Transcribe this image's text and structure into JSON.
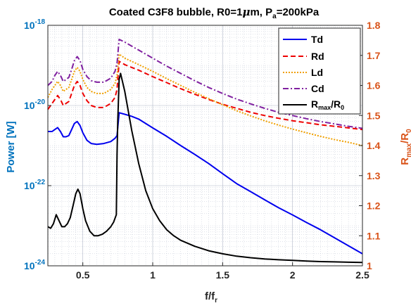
{
  "chart_data": {
    "type": "line",
    "title": "Coated C3F8 bubble, R0=1",
    "title_mu": "μ",
    "title_rest": "m, P",
    "title_sub": "a",
    "title_end": "=200kPa",
    "xlabel_main": "f/f",
    "xlabel_sub": "r",
    "ylabel_left": "Power [W]",
    "ylabel_right_main": "R",
    "ylabel_right_sub1": "max",
    "ylabel_right_mid": "/R",
    "ylabel_right_sub2": "0",
    "xlim": [
      0.25,
      2.5
    ],
    "ylim_left": [
      1e-24,
      1e-18
    ],
    "ylim_right": [
      1.0,
      1.8
    ],
    "left_scale": "log",
    "grid": true,
    "legend_position": "top-right",
    "x_ticks": [
      {
        "v": 0.5,
        "label": "0.5"
      },
      {
        "v": 1,
        "label": "1"
      },
      {
        "v": 1.5,
        "label": "1.5"
      },
      {
        "v": 2,
        "label": "2"
      },
      {
        "v": 2.5,
        "label": "2.5"
      }
    ],
    "left_ticks": [
      {
        "exp": -24,
        "base": "10",
        "sup": "-24"
      },
      {
        "exp": -22,
        "base": "10",
        "sup": "-22"
      },
      {
        "exp": -20,
        "base": "10",
        "sup": "-20"
      },
      {
        "exp": -18,
        "base": "10",
        "sup": "-18"
      }
    ],
    "right_ticks": [
      {
        "v": 1.0,
        "label": "1"
      },
      {
        "v": 1.1,
        "label": "1.1"
      },
      {
        "v": 1.2,
        "label": "1.2"
      },
      {
        "v": 1.3,
        "label": "1.3"
      },
      {
        "v": 1.4,
        "label": "1.4"
      },
      {
        "v": 1.5,
        "label": "1.5"
      },
      {
        "v": 1.6,
        "label": "1.6"
      },
      {
        "v": 1.7,
        "label": "1.7"
      },
      {
        "v": 1.8,
        "label": "1.8"
      }
    ],
    "series": [
      {
        "name": "Td",
        "axis": "left",
        "color": "#0000ee",
        "dash": "",
        "x": [
          0.25,
          0.28,
          0.3,
          0.32,
          0.34,
          0.36,
          0.38,
          0.4,
          0.42,
          0.44,
          0.46,
          0.48,
          0.5,
          0.53,
          0.56,
          0.6,
          0.65,
          0.7,
          0.73,
          0.745,
          0.76,
          0.8,
          0.85,
          0.9,
          1.0,
          1.1,
          1.2,
          1.3,
          1.4,
          1.5,
          1.6,
          1.7,
          1.8,
          1.9,
          2.0,
          2.1,
          2.2,
          2.3,
          2.4,
          2.5
        ],
        "y": [
          -20.65,
          -20.65,
          -20.6,
          -20.55,
          -20.65,
          -20.78,
          -20.78,
          -20.75,
          -20.6,
          -20.45,
          -20.4,
          -20.5,
          -20.68,
          -20.87,
          -20.95,
          -20.97,
          -20.95,
          -20.9,
          -20.82,
          -20.75,
          -20.18,
          -20.22,
          -20.27,
          -20.34,
          -20.56,
          -20.77,
          -21.0,
          -21.22,
          -21.45,
          -21.7,
          -21.95,
          -22.15,
          -22.35,
          -22.55,
          -22.73,
          -22.92,
          -23.1,
          -23.3,
          -23.5,
          -23.7
        ]
      },
      {
        "name": "Rd",
        "axis": "left",
        "color": "#ee0000",
        "dash": "7,4",
        "x": [
          0.25,
          0.28,
          0.3,
          0.32,
          0.34,
          0.36,
          0.38,
          0.4,
          0.42,
          0.44,
          0.46,
          0.48,
          0.5,
          0.53,
          0.56,
          0.6,
          0.65,
          0.7,
          0.73,
          0.745,
          0.76,
          0.8,
          0.85,
          0.9,
          1.0,
          1.1,
          1.2,
          1.3,
          1.4,
          1.5,
          1.6,
          1.7,
          1.8,
          1.9,
          2.0,
          2.1,
          2.2,
          2.3,
          2.4,
          2.5
        ],
        "y": [
          -20.1,
          -19.95,
          -19.85,
          -19.75,
          -19.85,
          -20.0,
          -19.95,
          -19.9,
          -19.7,
          -19.5,
          -19.4,
          -19.5,
          -19.7,
          -19.88,
          -20.0,
          -20.05,
          -20.05,
          -19.95,
          -19.8,
          -19.6,
          -18.9,
          -18.98,
          -19.05,
          -19.12,
          -19.28,
          -19.43,
          -19.58,
          -19.72,
          -19.85,
          -19.97,
          -20.07,
          -20.17,
          -20.25,
          -20.32,
          -20.38,
          -20.43,
          -20.48,
          -20.52,
          -20.56,
          -20.6
        ]
      },
      {
        "name": "Ld",
        "axis": "left",
        "color": "#f0a000",
        "dash": "2,2",
        "x": [
          0.25,
          0.28,
          0.3,
          0.32,
          0.34,
          0.36,
          0.38,
          0.4,
          0.42,
          0.44,
          0.46,
          0.48,
          0.5,
          0.53,
          0.56,
          0.6,
          0.65,
          0.7,
          0.73,
          0.745,
          0.76,
          0.8,
          0.85,
          0.9,
          1.0,
          1.1,
          1.2,
          1.3,
          1.4,
          1.5,
          1.6,
          1.7,
          1.8,
          1.9,
          2.0,
          2.1,
          2.2,
          2.3,
          2.4,
          2.5
        ],
        "y": [
          -19.8,
          -19.6,
          -19.5,
          -19.4,
          -19.5,
          -19.65,
          -19.6,
          -19.55,
          -19.35,
          -19.15,
          -19.05,
          -19.15,
          -19.35,
          -19.55,
          -19.65,
          -19.7,
          -19.7,
          -19.6,
          -19.45,
          -19.25,
          -18.72,
          -18.82,
          -18.9,
          -18.98,
          -19.15,
          -19.33,
          -19.5,
          -19.67,
          -19.83,
          -19.98,
          -20.13,
          -20.26,
          -20.38,
          -20.49,
          -20.59,
          -20.68,
          -20.77,
          -20.85,
          -20.92,
          -21.0
        ]
      },
      {
        "name": "Cd",
        "axis": "left",
        "color": "#8020a0",
        "dash": "8,3,2,3",
        "x": [
          0.25,
          0.28,
          0.3,
          0.32,
          0.34,
          0.36,
          0.38,
          0.4,
          0.42,
          0.44,
          0.46,
          0.48,
          0.5,
          0.53,
          0.56,
          0.6,
          0.65,
          0.7,
          0.73,
          0.745,
          0.76,
          0.8,
          0.85,
          0.9,
          1.0,
          1.1,
          1.2,
          1.3,
          1.4,
          1.5,
          1.6,
          1.7,
          1.8,
          1.9,
          2.0,
          2.1,
          2.2,
          2.3,
          2.4,
          2.5
        ],
        "y": [
          -19.5,
          -19.4,
          -19.25,
          -19.15,
          -19.25,
          -19.4,
          -19.35,
          -19.3,
          -19.1,
          -18.88,
          -18.78,
          -18.88,
          -19.1,
          -19.28,
          -19.38,
          -19.42,
          -19.42,
          -19.32,
          -19.15,
          -18.95,
          -18.35,
          -18.42,
          -18.52,
          -18.62,
          -18.82,
          -19.02,
          -19.2,
          -19.38,
          -19.55,
          -19.7,
          -19.84,
          -19.96,
          -20.07,
          -20.17,
          -20.25,
          -20.33,
          -20.4,
          -20.46,
          -20.52,
          -20.57
        ]
      },
      {
        "name": "Rmax/R0",
        "axis": "right",
        "color": "#000000",
        "dash": "",
        "x": [
          0.25,
          0.27,
          0.29,
          0.31,
          0.33,
          0.35,
          0.37,
          0.39,
          0.41,
          0.43,
          0.45,
          0.465,
          0.48,
          0.5,
          0.52,
          0.55,
          0.58,
          0.61,
          0.64,
          0.67,
          0.7,
          0.72,
          0.74,
          0.745,
          0.75,
          0.76,
          0.77,
          0.78,
          0.8,
          0.85,
          0.9,
          0.95,
          1.0,
          1.05,
          1.1,
          1.15,
          1.2,
          1.3,
          1.4,
          1.5,
          1.6,
          1.7,
          1.8,
          1.9,
          2.0,
          2.1,
          2.2,
          2.3,
          2.4,
          2.5
        ],
        "y": [
          1.13,
          1.125,
          1.14,
          1.17,
          1.15,
          1.13,
          1.13,
          1.14,
          1.16,
          1.2,
          1.24,
          1.255,
          1.24,
          1.19,
          1.15,
          1.115,
          1.1,
          1.1,
          1.105,
          1.115,
          1.13,
          1.145,
          1.17,
          1.37,
          1.48,
          1.62,
          1.64,
          1.62,
          1.58,
          1.45,
          1.34,
          1.25,
          1.19,
          1.15,
          1.12,
          1.1,
          1.085,
          1.065,
          1.05,
          1.04,
          1.032,
          1.027,
          1.023,
          1.02,
          1.018,
          1.016,
          1.014,
          1.013,
          1.012,
          1.011
        ]
      }
    ],
    "legend_labels": {
      "Td": "Td",
      "Rd": "Rd",
      "Ld": "Ld",
      "Cd": "Cd",
      "Rmax_main": "R",
      "Rmax_sub1": "max",
      "Rmax_mid": "/R",
      "Rmax_sub2": "0"
    },
    "colors": {
      "left_axis": "#0072bd",
      "right_axis": "#d95319",
      "grid": "#b0b8c8",
      "box": "#262626"
    }
  }
}
